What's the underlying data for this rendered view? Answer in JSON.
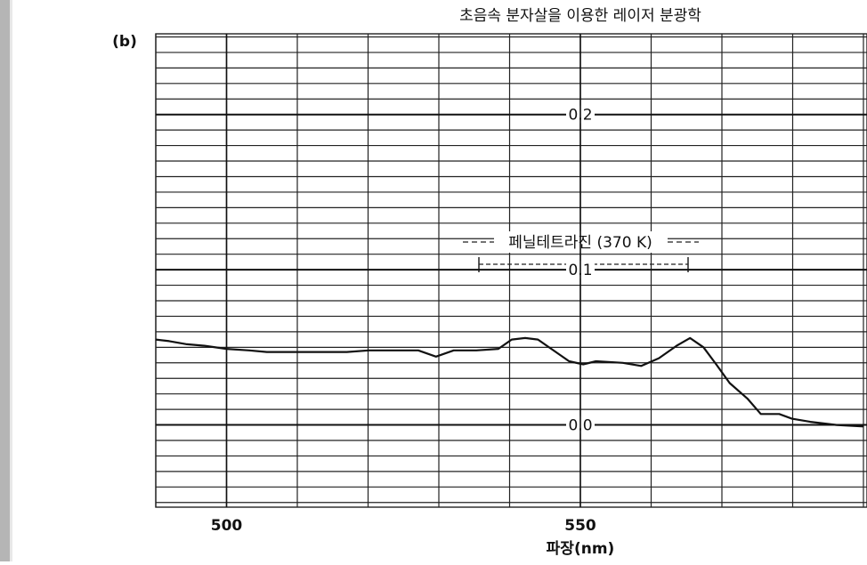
{
  "chart_data": {
    "type": "line",
    "title": "초음속 분자살을 이용한 레이저 분광학",
    "panel_label": "(b)",
    "x_label": "파장(nm)",
    "annotation": "페닐테트라진 (370 K)",
    "x": [
      490,
      491.9,
      494.4,
      496.9,
      500,
      503.2,
      505.7,
      510.1,
      513.3,
      517.0,
      520.1,
      523.3,
      527.1,
      529.6,
      532.1,
      535.3,
      538.4,
      540.3,
      542.2,
      544.0,
      545.9,
      548.4,
      550.4,
      552.2,
      556.0,
      558.6,
      561.1,
      563.6,
      565.5,
      567.4,
      569.2,
      571.1,
      573.6,
      575.5,
      578.1,
      579.9,
      582.5,
      586.2,
      590
    ],
    "series": [
      {
        "color": "#111111",
        "values": [
          0.055,
          0.054,
          0.052,
          0.051,
          0.049,
          0.048,
          0.047,
          0.047,
          0.047,
          0.047,
          0.048,
          0.048,
          0.048,
          0.044,
          0.048,
          0.048,
          0.049,
          0.055,
          0.056,
          0.055,
          0.049,
          0.041,
          0.039,
          0.041,
          0.04,
          0.038,
          0.043,
          0.051,
          0.056,
          0.05,
          0.039,
          0.027,
          0.017,
          0.007,
          0.007,
          0.004,
          0.002,
          0.0,
          -0.001
        ]
      }
    ],
    "xlim": [
      490,
      590
    ],
    "xticks": [
      500,
      550
    ],
    "ylim": [
      -0.053,
      0.252
    ],
    "yticks": [
      {
        "value": 0,
        "label": "0.0"
      },
      0.1,
      0.2
    ],
    "grid": true
  }
}
